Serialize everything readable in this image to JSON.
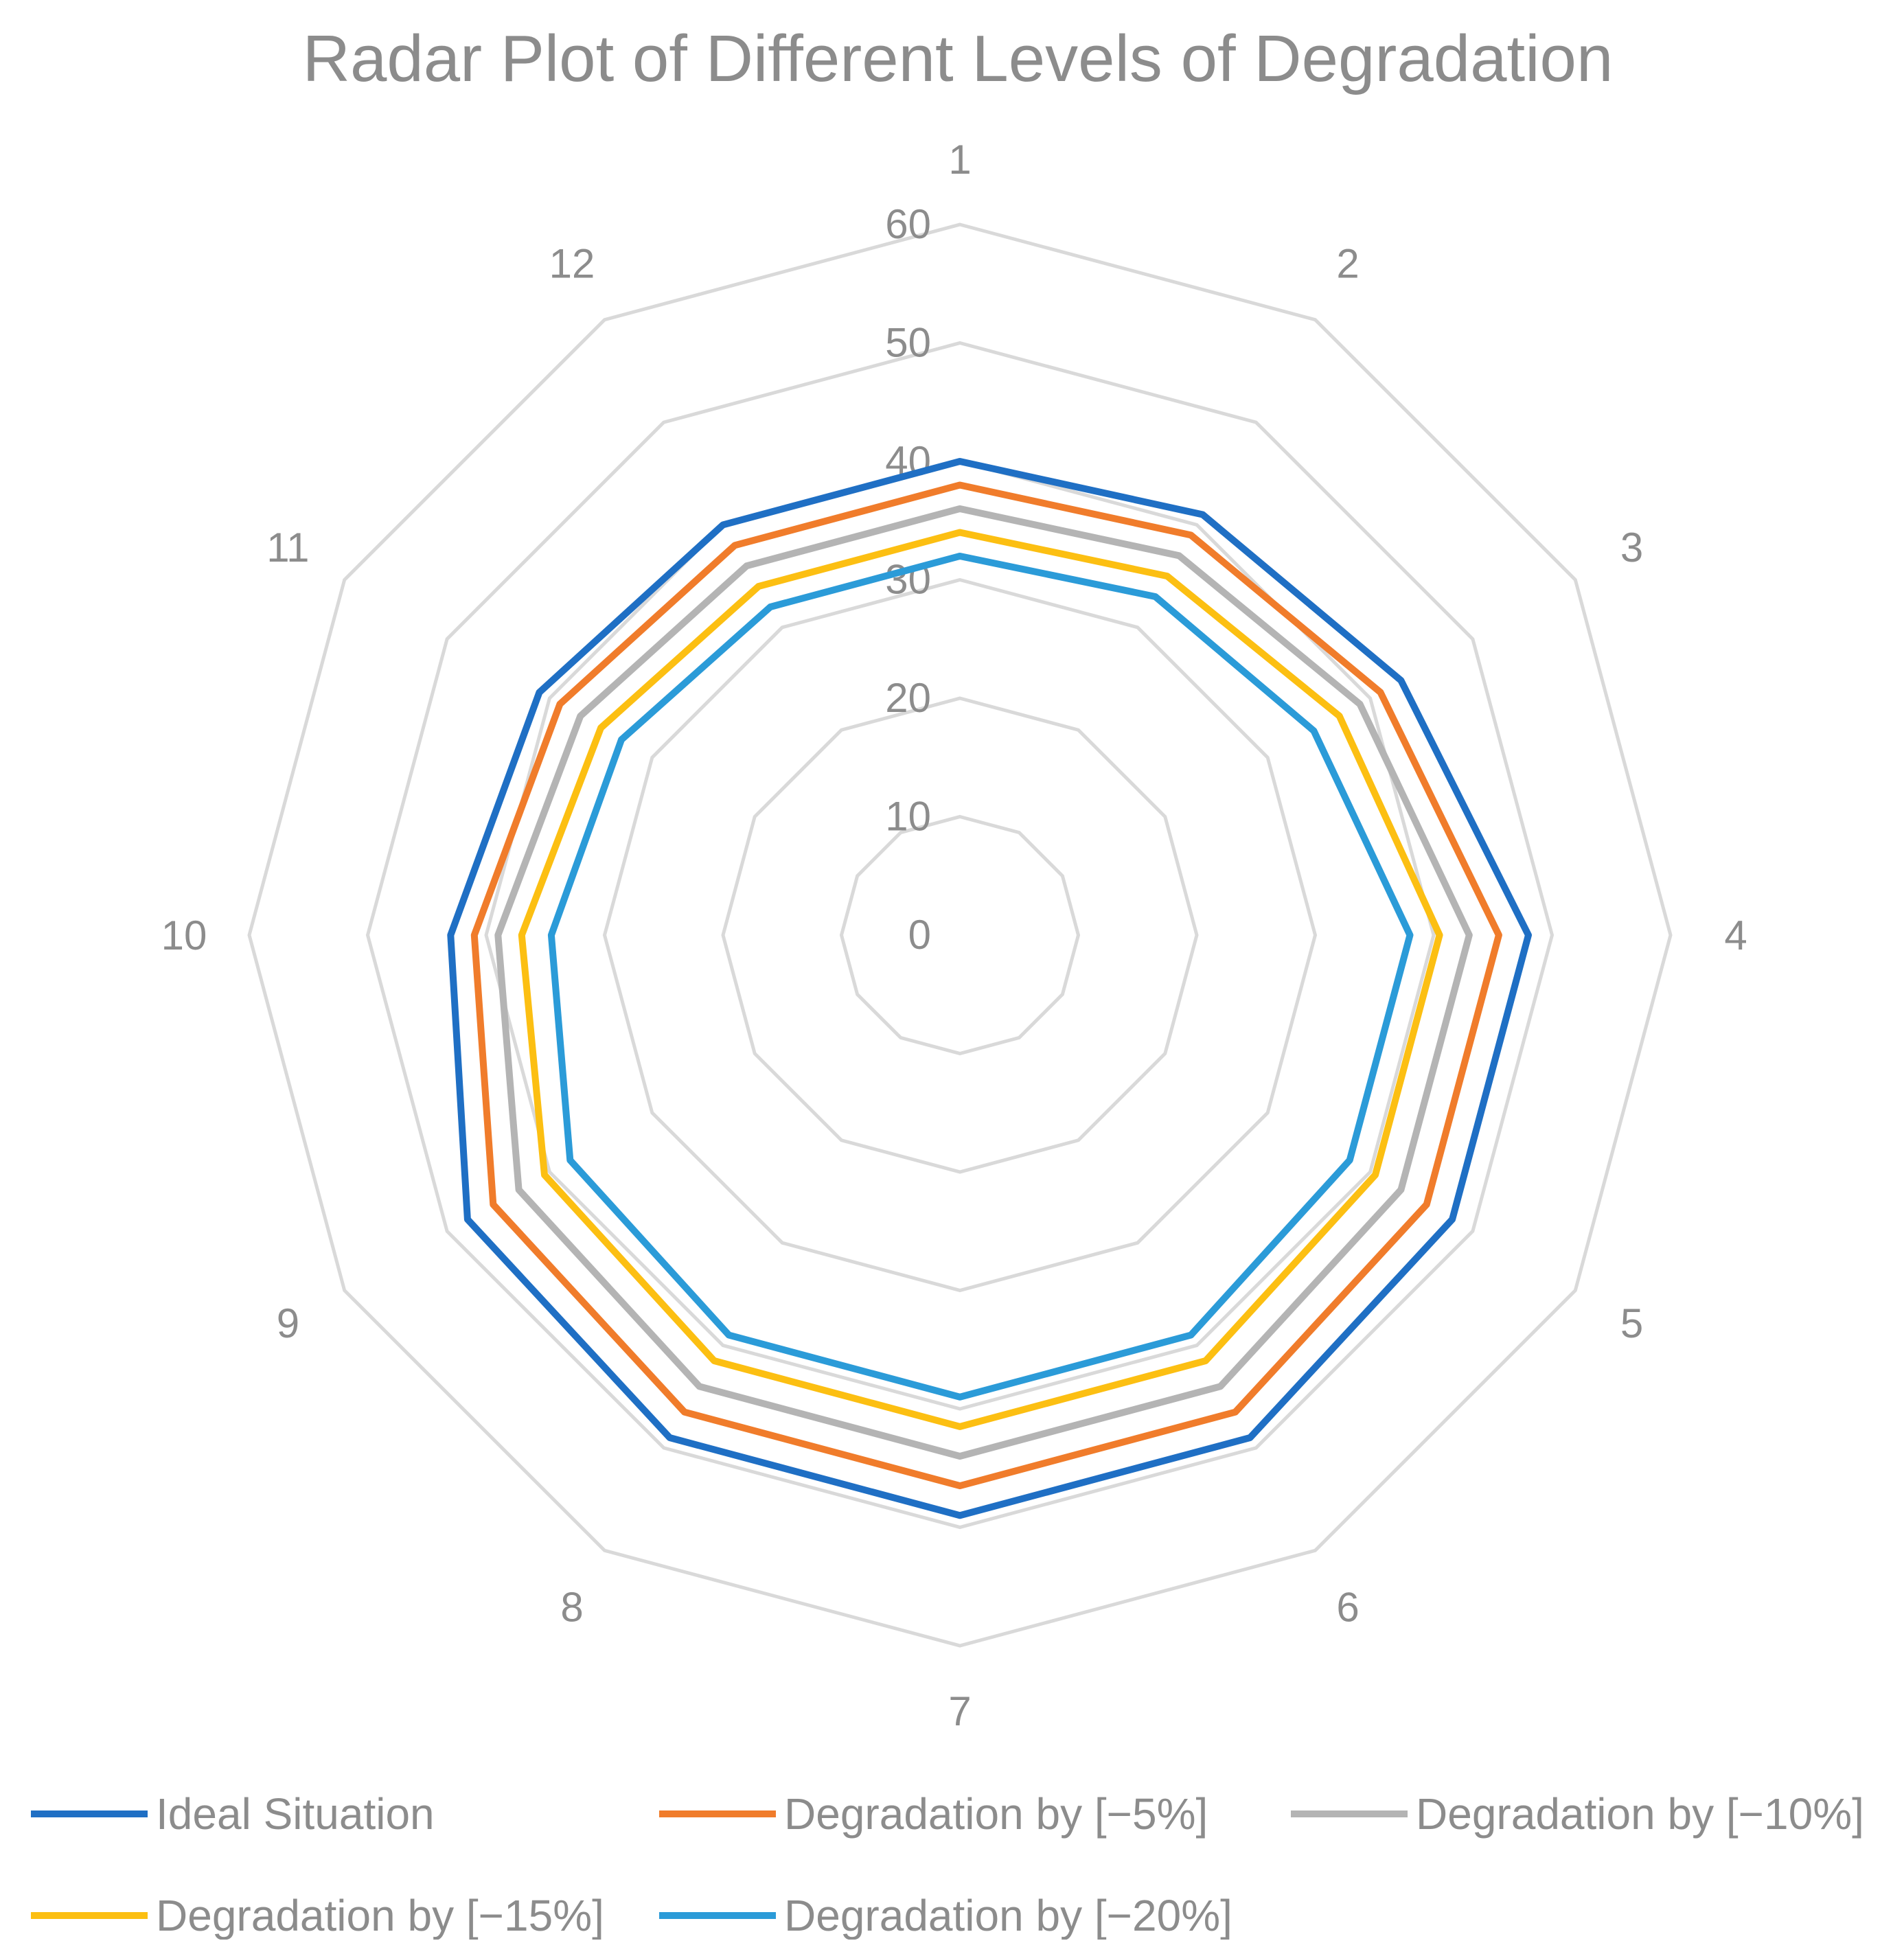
{
  "chart_data": {
    "type": "radar",
    "title": "Radar Plot of Different Levels of Degradation",
    "categories": [
      "1",
      "2",
      "3",
      "4",
      "5",
      "6",
      "7",
      "8",
      "9",
      "10",
      "11",
      "12"
    ],
    "rlim": [
      0,
      60
    ],
    "ticks": [
      "0",
      "10",
      "20",
      "30",
      "40",
      "50",
      "60"
    ],
    "tick_values": [
      0,
      10,
      20,
      30,
      40,
      50,
      60
    ],
    "grid": true,
    "legend_position": "bottom",
    "series": [
      {
        "name": "Ideal Situation",
        "color": "#1f6fc4",
        "values": [
          40,
          41,
          43,
          48,
          48,
          49,
          49,
          49,
          48,
          43,
          41,
          40
        ]
      },
      {
        "name": "Degradation by [−5%]",
        "color": "#f07c2b",
        "values": [
          38,
          39,
          41,
          45.5,
          45.5,
          46.5,
          46.5,
          46.5,
          45.5,
          41,
          39,
          38
        ]
      },
      {
        "name": "Degradation by [−10%]",
        "color": "#b4b4b4",
        "values": [
          36,
          37,
          39,
          43,
          43,
          44,
          44,
          44,
          43,
          39,
          37,
          36
        ]
      },
      {
        "name": "Degradation by [−15%]",
        "color": "#fcbf12",
        "values": [
          34,
          35,
          37,
          40.5,
          40.5,
          41.5,
          41.5,
          41.5,
          40.5,
          37,
          35,
          34
        ]
      },
      {
        "name": "Degradation by [−20%]",
        "color": "#2b9bd8",
        "values": [
          32,
          33,
          34.5,
          38,
          38,
          39,
          39,
          39,
          38,
          34.5,
          33,
          32
        ]
      }
    ]
  }
}
